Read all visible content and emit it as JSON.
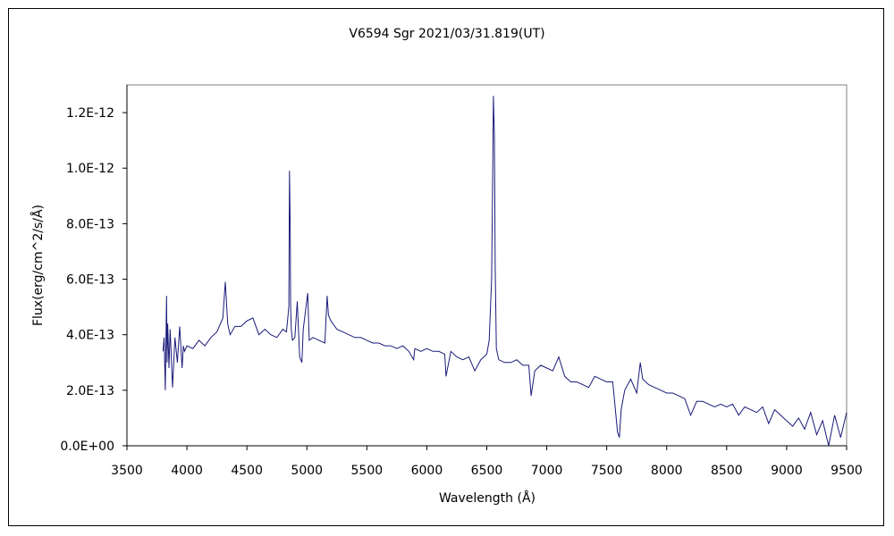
{
  "chart_data": {
    "type": "line",
    "title": "V6594 Sgr   2021/03/31.819(UT)",
    "xlabel": "Wavelength (Å)",
    "ylabel": "Flux(erg/cm^2/s/Å)",
    "xlim": [
      3500,
      9500
    ],
    "ylim": [
      0,
      1.3e-12
    ],
    "grid": false,
    "legend": "none",
    "line_color": "#1a1a7a",
    "x_ticks": [
      3500,
      4000,
      4500,
      5000,
      5500,
      6000,
      6500,
      7000,
      7500,
      8000,
      8500,
      9000,
      9500
    ],
    "x_tick_labels": [
      "3500",
      "4000",
      "4500",
      "5000",
      "5500",
      "6000",
      "6500",
      "7000",
      "7500",
      "8000",
      "8500",
      "9000",
      "9500"
    ],
    "y_ticks": [
      0,
      2e-13,
      4e-13,
      6e-13,
      8e-13,
      1e-12,
      1.2e-12
    ],
    "y_tick_labels": [
      "0.0E+00",
      "2.0E-13",
      "4.0E-13",
      "6.0E-13",
      "8.0E-13",
      "1.0E-12",
      "1.2E-12"
    ],
    "series": [
      {
        "x": [
          3800,
          3810,
          3820,
          3830,
          3835,
          3840,
          3850,
          3860,
          3870,
          3880,
          3900,
          3920,
          3940,
          3960,
          3970,
          3980,
          4000,
          4050,
          4100,
          4150,
          4200,
          4250,
          4300,
          4320,
          4340,
          4350,
          4360,
          4400,
          4450,
          4500,
          4550,
          4600,
          4650,
          4700,
          4750,
          4800,
          4830,
          4850,
          4855,
          4861,
          4865,
          4870,
          4880,
          4900,
          4920,
          4940,
          4959,
          4970,
          5007,
          5020,
          5050,
          5100,
          5150,
          5169,
          5180,
          5200,
          5250,
          5300,
          5350,
          5400,
          5450,
          5500,
          5550,
          5600,
          5650,
          5700,
          5750,
          5800,
          5850,
          5890,
          5900,
          5950,
          6000,
          6050,
          6100,
          6150,
          6160,
          6200,
          6250,
          6300,
          6350,
          6400,
          6450,
          6500,
          6520,
          6540,
          6550,
          6555,
          6563,
          6570,
          6580,
          6600,
          6650,
          6700,
          6750,
          6800,
          6850,
          6870,
          6900,
          6950,
          7000,
          7050,
          7100,
          7150,
          7200,
          7250,
          7300,
          7350,
          7400,
          7450,
          7500,
          7550,
          7590,
          7605,
          7620,
          7650,
          7700,
          7750,
          7780,
          7800,
          7850,
          7900,
          7950,
          8000,
          8050,
          8100,
          8150,
          8200,
          8250,
          8300,
          8350,
          8400,
          8450,
          8500,
          8550,
          8600,
          8650,
          8700,
          8750,
          8800,
          8850,
          8900,
          8950,
          9000,
          9050,
          9100,
          9150,
          9200,
          9250,
          9300,
          9350,
          9400,
          9450,
          9500
        ],
        "y": [
          3.4e-13,
          3.9e-13,
          2e-13,
          5.4e-13,
          3e-13,
          4.4e-13,
          2.8e-13,
          4.2e-13,
          3.2e-13,
          2.1e-13,
          3.9e-13,
          3e-13,
          4.3e-13,
          2.8e-13,
          3.6e-13,
          3.4e-13,
          3.6e-13,
          3.5e-13,
          3.8e-13,
          3.6e-13,
          3.9e-13,
          4.1e-13,
          4.6e-13,
          5.9e-13,
          4.4e-13,
          4.2e-13,
          4e-13,
          4.3e-13,
          4.3e-13,
          4.5e-13,
          4.6e-13,
          4e-13,
          4.2e-13,
          4e-13,
          3.9e-13,
          4.2e-13,
          4.1e-13,
          5e-13,
          9.9e-13,
          8e-13,
          5e-13,
          4.2e-13,
          3.8e-13,
          3.9e-13,
          5.2e-13,
          3.2e-13,
          3e-13,
          4.2e-13,
          5.5e-13,
          3.8e-13,
          3.9e-13,
          3.8e-13,
          3.7e-13,
          5.4e-13,
          4.7e-13,
          4.5e-13,
          4.2e-13,
          4.1e-13,
          4e-13,
          3.9e-13,
          3.9e-13,
          3.8e-13,
          3.7e-13,
          3.7e-13,
          3.6e-13,
          3.6e-13,
          3.5e-13,
          3.6e-13,
          3.4e-13,
          3.1e-13,
          3.5e-13,
          3.4e-13,
          3.5e-13,
          3.4e-13,
          3.4e-13,
          3.3e-13,
          2.5e-13,
          3.4e-13,
          3.2e-13,
          3.1e-13,
          3.2e-13,
          2.7e-13,
          3.1e-13,
          3.3e-13,
          3.8e-13,
          6e-13,
          1e-12,
          1.26e-12,
          1.12e-12,
          6.5e-13,
          3.5e-13,
          3.1e-13,
          3e-13,
          3e-13,
          3.1e-13,
          2.9e-13,
          2.9e-13,
          1.8e-13,
          2.7e-13,
          2.9e-13,
          2.8e-13,
          2.7e-13,
          3.2e-13,
          2.5e-13,
          2.3e-13,
          2.3e-13,
          2.2e-13,
          2.1e-13,
          2.5e-13,
          2.4e-13,
          2.3e-13,
          2.3e-13,
          5e-14,
          3e-14,
          1.3e-13,
          2e-13,
          2.4e-13,
          1.9e-13,
          3e-13,
          2.4e-13,
          2.2e-13,
          2.1e-13,
          2e-13,
          1.9e-13,
          1.9e-13,
          1.8e-13,
          1.7e-13,
          1.1e-13,
          1.6e-13,
          1.6e-13,
          1.5e-13,
          1.4e-13,
          1.5e-13,
          1.4e-13,
          1.5e-13,
          1.1e-13,
          1.4e-13,
          1.3e-13,
          1.2e-13,
          1.4e-13,
          8e-14,
          1.3e-13,
          1.1e-13,
          9e-14,
          7e-14,
          1e-13,
          6e-14,
          1.2e-13,
          4e-14,
          9e-14,
          0.0,
          1.1e-13,
          3e-14,
          1.2e-13
        ]
      }
    ]
  }
}
